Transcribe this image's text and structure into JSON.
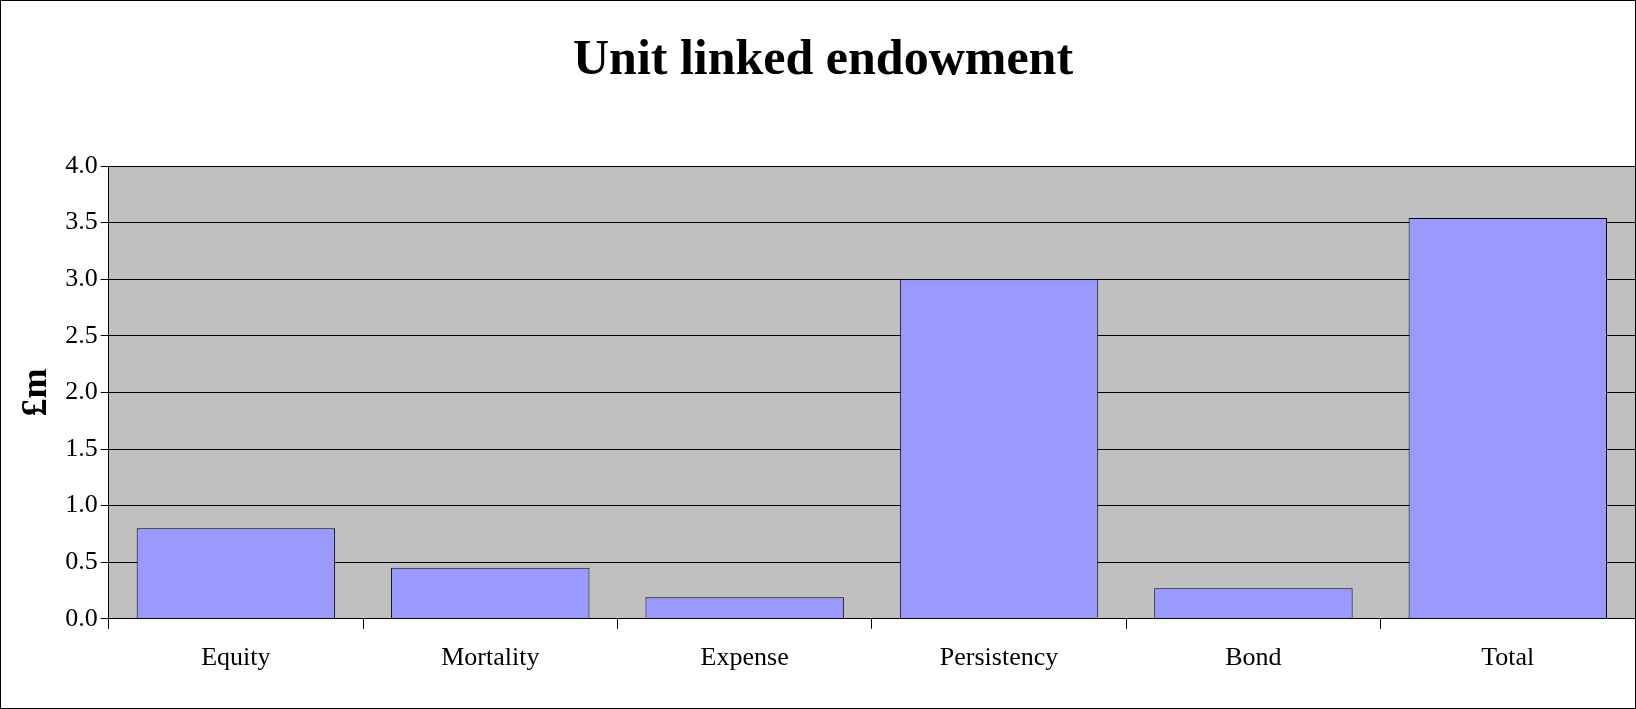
{
  "chart_data": {
    "type": "bar",
    "title": "Unit linked endowment",
    "ylabel": "£m",
    "categories": [
      "Equity",
      "Mortality",
      "Expense",
      "Persistency",
      "Bond",
      "Total"
    ],
    "values": [
      0.8,
      0.45,
      0.19,
      3.0,
      0.27,
      3.54
    ],
    "color": "#9999ff",
    "ylim": [
      0,
      4
    ],
    "yticks": [
      {
        "value": 0,
        "label": "0.0"
      },
      {
        "value": 0.5,
        "label": "0.5"
      },
      {
        "value": 1,
        "label": "1.0"
      },
      {
        "value": 1.5,
        "label": "1.5"
      },
      {
        "value": 2,
        "label": "2.0"
      },
      {
        "value": 2.5,
        "label": "2.5"
      },
      {
        "value": 3,
        "label": "3.0"
      },
      {
        "value": 3.5,
        "label": "3.5"
      },
      {
        "value": 4,
        "label": "4.0"
      }
    ],
    "grid": "y",
    "legend": false
  }
}
